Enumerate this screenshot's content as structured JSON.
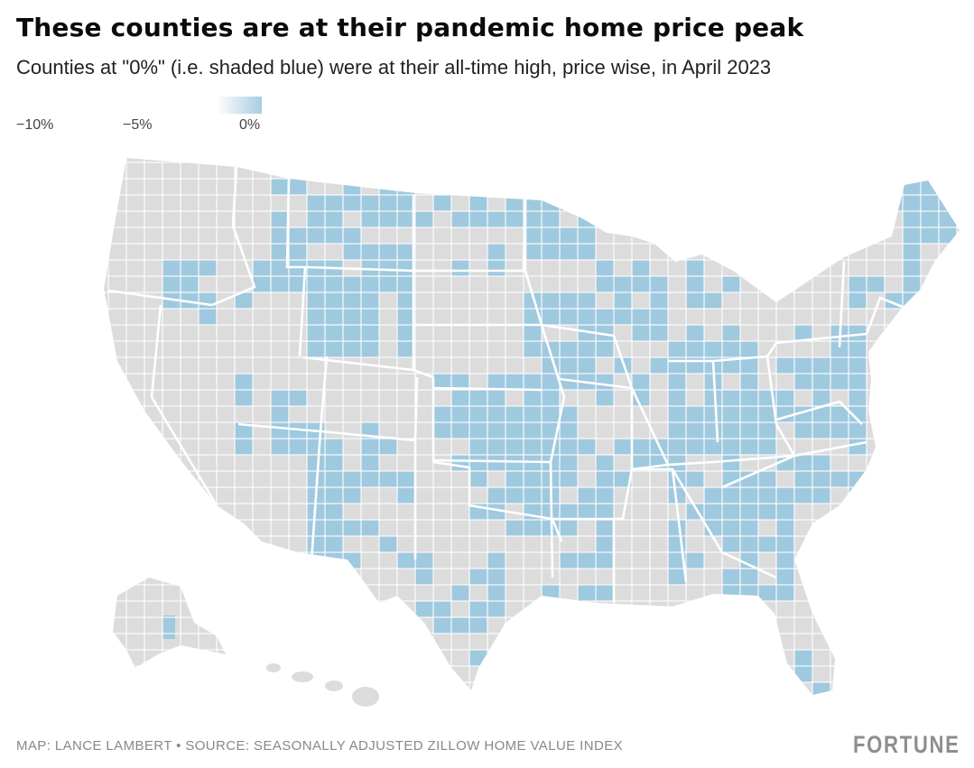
{
  "title": "These counties are at their pandemic home price peak",
  "subtitle": "Counties at \"0%\" (i.e. shaded blue) were at their all-time high, price wise, in April 2023",
  "legend": {
    "labels": [
      "−10%",
      "−5%",
      "0%"
    ],
    "color_low": "#ffffff",
    "color_high": "#a8cde0"
  },
  "map": {
    "region": "United States counties",
    "base_color": "#dcdcdc",
    "highlight_color": "#9fc9df",
    "border_color": "#ffffff"
  },
  "footer": {
    "credit": "MAP: LANCE LAMBERT • SOURCE: SEASONALLY ADJUSTED ZILLOW HOME VALUE INDEX",
    "brand": "FORTUNE"
  }
}
